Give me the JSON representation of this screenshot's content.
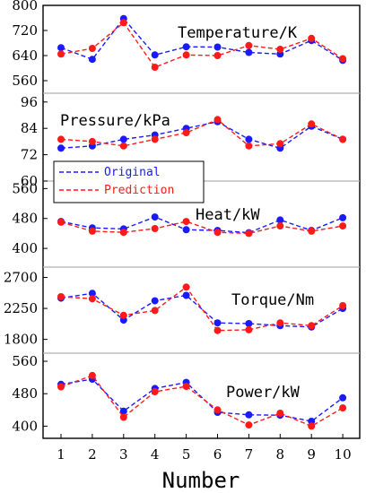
{
  "chart_data": {
    "type": "line",
    "xlabel": "Number",
    "x": [
      1,
      2,
      3,
      4,
      5,
      6,
      7,
      8,
      9,
      10
    ],
    "legend": {
      "placement": "left",
      "entries": [
        "Original",
        "Prediction"
      ]
    },
    "colors": {
      "original": "#1a1aff",
      "prediction": "#ff1a1a",
      "divider": "#b0b0b0"
    },
    "panels": [
      {
        "title": "Temperature/K",
        "ylim": [
          520,
          800
        ],
        "yticks": [
          560,
          640,
          720,
          800
        ],
        "series": [
          {
            "name": "Original",
            "values": [
              665,
              628,
              758,
              642,
              668,
              667,
              650,
              645,
              688,
              625
            ]
          },
          {
            "name": "Prediction",
            "values": [
              645,
              663,
              745,
              603,
              642,
              640,
              672,
              660,
              695,
              630
            ]
          }
        ]
      },
      {
        "title": "Pressure/kPa",
        "ylim": [
          60,
          100
        ],
        "yticks": [
          60,
          72,
          84,
          96
        ],
        "series": [
          {
            "name": "Original",
            "values": [
              75,
              76,
              79,
              81,
              84,
              87,
              79,
              75,
              85,
              79
            ]
          },
          {
            "name": "Prediction",
            "values": [
              79,
              78,
              76,
              79,
              82,
              88,
              76,
              77,
              86,
              79
            ]
          }
        ]
      },
      {
        "title": "Heat/kW",
        "ylim": [
          350,
          580
        ],
        "yticks": [
          400,
          480,
          560
        ],
        "series": [
          {
            "name": "Original",
            "values": [
              472,
              455,
              452,
              484,
              450,
              448,
              442,
              476,
              448,
              482
            ]
          },
          {
            "name": "Prediction",
            "values": [
              470,
              446,
              443,
              453,
              472,
              443,
              440,
              460,
              446,
              460
            ]
          }
        ]
      },
      {
        "title": "Torque/Nm",
        "ylim": [
          1600,
          2850
        ],
        "yticks": [
          1800,
          2250,
          2700
        ],
        "series": [
          {
            "name": "Original",
            "values": [
              2400,
              2470,
              2080,
              2360,
              2440,
              2040,
              2030,
              2000,
              1980,
              2250
            ]
          },
          {
            "name": "Prediction",
            "values": [
              2420,
              2390,
              2150,
              2220,
              2560,
              1930,
              1940,
              2040,
              2000,
              2290
            ]
          }
        ]
      },
      {
        "title": "Power/kW",
        "ylim": [
          370,
          580
        ],
        "yticks": [
          400,
          480,
          560
        ],
        "series": [
          {
            "name": "Original",
            "values": [
              503,
              516,
              437,
              493,
              508,
              434,
              428,
              427,
              412,
              470
            ]
          },
          {
            "name": "Prediction",
            "values": [
              497,
              525,
              422,
              485,
              498,
              440,
              403,
              432,
              400,
              445
            ]
          }
        ]
      }
    ]
  }
}
